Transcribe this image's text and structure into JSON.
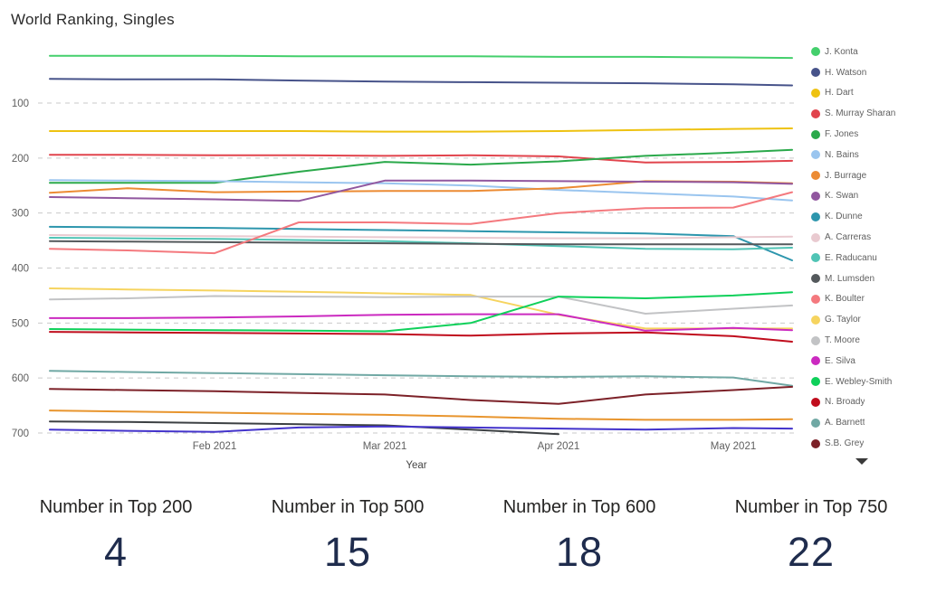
{
  "title": "World Ranking, Singles",
  "chart_data": {
    "type": "line",
    "title": "World Ranking, Singles",
    "xlabel": "Year",
    "ylabel": "",
    "grid": "horizontal-dashed",
    "legend_position": "right",
    "legend_overflow_icon": "chevron-down",
    "y_axis": {
      "ticks": [
        100,
        200,
        300,
        400,
        500,
        600,
        700
      ],
      "inverted": true,
      "range": [
        1,
        750
      ]
    },
    "x_tick_labels": [
      "Feb 2021",
      "Mar 2021",
      "Apr 2021",
      "May 2021"
    ],
    "x": [
      "Jan 1",
      "Jan 15",
      "Feb 1",
      "Feb 15",
      "Mar 1",
      "Mar 15",
      "Apr 1",
      "Apr 15",
      "May 1",
      "May 10"
    ],
    "series": [
      {
        "name": "J. Konta",
        "color": "#44cf6c",
        "values": [
          14,
          14,
          14,
          15,
          15,
          15,
          16,
          16,
          17,
          18
        ]
      },
      {
        "name": "H. Watson",
        "color": "#47538a",
        "values": [
          56,
          57,
          57,
          59,
          61,
          62,
          63,
          64,
          66,
          68
        ]
      },
      {
        "name": "H. Dart",
        "color": "#eec211",
        "values": [
          151,
          151,
          151,
          151,
          152,
          152,
          151,
          149,
          147,
          146
        ]
      },
      {
        "name": "S. Murray Sharan",
        "color": "#e1444d",
        "values": [
          194,
          194,
          195,
          195,
          196,
          195,
          197,
          208,
          207,
          205
        ]
      },
      {
        "name": "F. Jones",
        "color": "#2ba94b",
        "values": [
          245,
          245,
          245,
          225,
          207,
          212,
          206,
          196,
          190,
          185
        ]
      },
      {
        "name": "N. Bains",
        "color": "#9ac5ef",
        "values": [
          240,
          241,
          242,
          244,
          246,
          250,
          258,
          264,
          270,
          277
        ]
      },
      {
        "name": "J. Burrage",
        "color": "#ec8b33",
        "values": [
          263,
          255,
          262,
          261,
          260,
          260,
          255,
          242,
          243,
          246
        ]
      },
      {
        "name": "K. Swan",
        "color": "#91579f",
        "values": [
          271,
          273,
          275,
          278,
          241,
          241,
          242,
          243,
          244,
          247
        ]
      },
      {
        "name": "K. Dunne",
        "color": "#2d96ad",
        "values": [
          325,
          326,
          327,
          329,
          331,
          333,
          335,
          337,
          342,
          386
        ]
      },
      {
        "name": "A. Carreras",
        "color": "#e9cad0",
        "values": [
          340,
          341,
          342,
          343,
          344,
          345,
          346,
          346,
          344,
          343
        ]
      },
      {
        "name": "E. Raducanu",
        "color": "#50c4b5",
        "values": [
          345,
          346,
          347,
          349,
          351,
          355,
          360,
          365,
          366,
          363
        ]
      },
      {
        "name": "M. Lumsden",
        "color": "#54595c",
        "values": [
          351,
          352,
          353,
          354,
          355,
          356,
          357,
          357,
          357,
          357
        ]
      },
      {
        "name": "K. Boulter",
        "color": "#f4797e",
        "values": [
          365,
          368,
          373,
          317,
          317,
          320,
          300,
          291,
          290,
          262
        ]
      },
      {
        "name": "G. Taylor",
        "color": "#f6d45f",
        "values": [
          437,
          439,
          441,
          443,
          446,
          449,
          485,
          510,
          510,
          510
        ]
      },
      {
        "name": "T. Moore",
        "color": "#c2c3c5",
        "values": [
          457,
          455,
          451,
          452,
          453,
          452,
          452,
          483,
          474,
          468
        ]
      },
      {
        "name": "E. Silva",
        "color": "#cb2ac0",
        "values": [
          491,
          491,
          490,
          488,
          485,
          484,
          484,
          514,
          509,
          513
        ]
      },
      {
        "name": "E. Webley-Smith",
        "color": "#0fd05a",
        "values": [
          511,
          512,
          513,
          514,
          515,
          500,
          452,
          455,
          450,
          444
        ]
      },
      {
        "name": "N. Broady",
        "color": "#c00d1d",
        "values": [
          516,
          517,
          518,
          519,
          520,
          523,
          519,
          517,
          524,
          534
        ]
      },
      {
        "name": "A. Barnett",
        "color": "#70a8a4",
        "values": [
          587,
          589,
          591,
          593,
          595,
          597,
          598,
          597,
          599,
          614
        ]
      },
      {
        "name": "S.B. Grey",
        "color": "#7c2128",
        "values": [
          620,
          622,
          624,
          627,
          630,
          640,
          647,
          630,
          622,
          616
        ]
      },
      {
        "name": "",
        "in_legend": false,
        "color": "#e8952e",
        "values": [
          659,
          661,
          663,
          665,
          667,
          670,
          674,
          676,
          676,
          675
        ]
      },
      {
        "name": "",
        "in_legend": false,
        "color": "#3c4043",
        "values": [
          679,
          680,
          682,
          684,
          686,
          694,
          702,
          null,
          null,
          null
        ]
      },
      {
        "name": "",
        "in_legend": false,
        "color": "#4333cb",
        "values": [
          694,
          696,
          698,
          690,
          688,
          690,
          692,
          694,
          691,
          692
        ]
      }
    ]
  },
  "kpis": [
    {
      "label": "Number in Top 200",
      "value": "4"
    },
    {
      "label": "Number in Top 500",
      "value": "15"
    },
    {
      "label": "Number in Top 600",
      "value": "18"
    },
    {
      "label": "Number in Top 750",
      "value": "22"
    }
  ],
  "colors": {
    "axis_text": "#5f5f5f",
    "gridline": "#c9c9c9",
    "title_text": "#2b2b2b",
    "kpi_value": "#1f2c4d"
  }
}
